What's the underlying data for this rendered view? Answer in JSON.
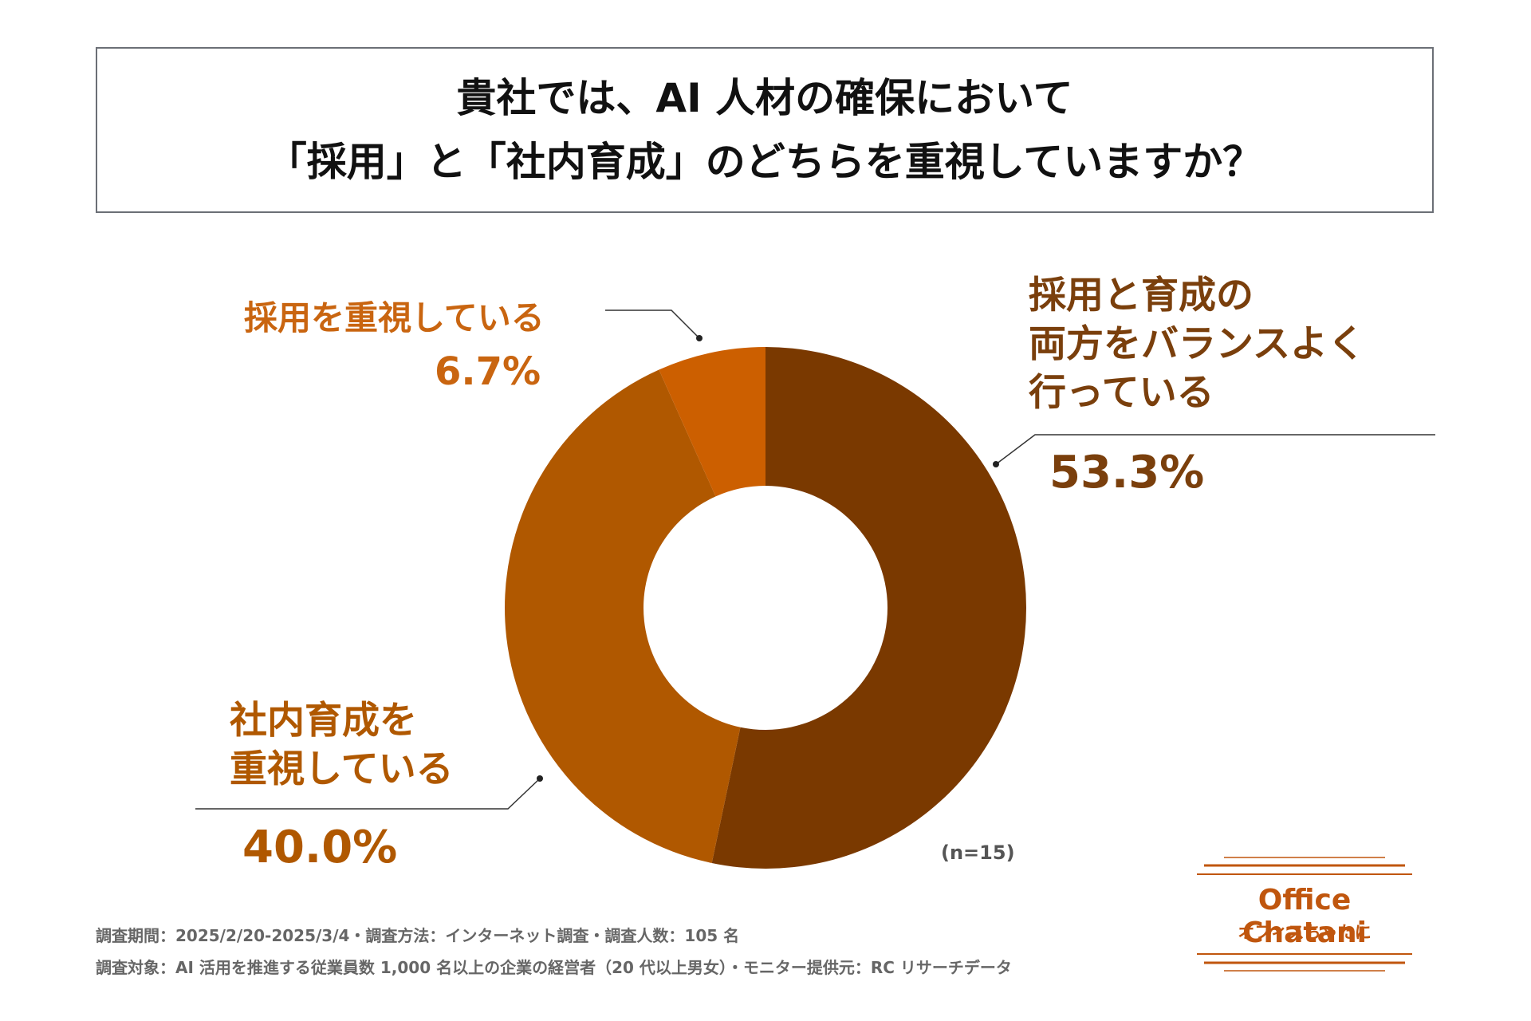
{
  "chart_data": {
    "type": "pie",
    "donut": true,
    "title": "貴社では、AI 人材の確保において\n「採用」と「社内育成」のどちらを重視していますか？",
    "categories": [
      "採用と育成の\n両方をバランスよく\n行っている",
      "社内育成を\n重視している",
      "採用を重視している"
    ],
    "values": [
      53.3,
      40.0,
      6.7
    ],
    "value_labels": [
      "53.3%",
      "40.0%",
      "6.7%"
    ],
    "colors": [
      "#7a3900",
      "#b05800",
      "#cc5f00"
    ],
    "label_colors": [
      "#7a3f0c",
      "#b05800",
      "#c96510"
    ],
    "note": "(n=15)"
  },
  "footer": [
    "調査期間：2025/2/20-2025/3/4・調査方法：インターネット調査・調査人数：105 名",
    "調査対象：AI 活用を推進する従業員数 1,000 名以上の企業の経営者（20 代以上男女）・モニター提供元：RC リサーチデータ"
  ],
  "logo": {
    "name": "Office Chatani",
    "subtitle": "オフィスちゃたに"
  }
}
